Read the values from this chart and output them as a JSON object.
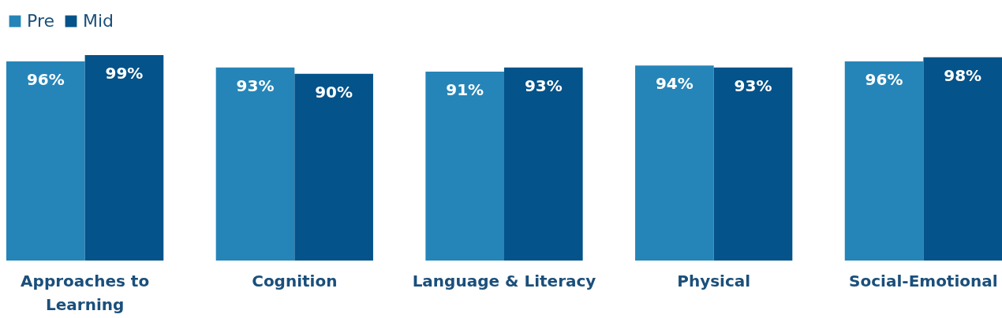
{
  "chart_data": {
    "type": "bar",
    "categories": [
      "Approaches to Learning",
      "Cognition",
      "Language & Literacy",
      "Physical",
      "Social-Emotional"
    ],
    "series": [
      {
        "name": "Pre",
        "color": "#2585b8",
        "values": [
          96,
          93,
          91,
          94,
          96
        ],
        "value_labels": [
          "96%",
          "93%",
          "91%",
          "94%",
          "96%"
        ]
      },
      {
        "name": "Mid",
        "color": "#04538a",
        "values": [
          99,
          90,
          93,
          93,
          98
        ],
        "value_labels": [
          "99%",
          "90%",
          "93%",
          "93%",
          "98%"
        ]
      }
    ],
    "legend": "top",
    "grid": false
  }
}
